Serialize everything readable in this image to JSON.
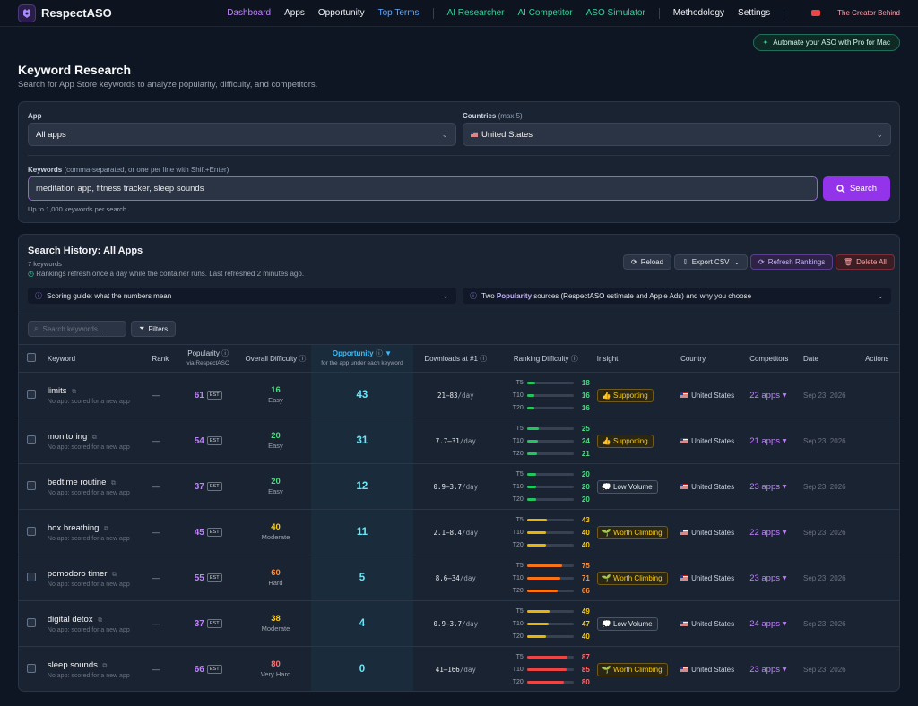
{
  "nav": {
    "brand": "RespectASO",
    "links": [
      "Dashboard",
      "Apps",
      "Opportunity",
      "Top Terms",
      "AI Researcher",
      "AI Competitor",
      "ASO Simulator",
      "Methodology",
      "Settings"
    ],
    "creator": "The Creator Behind",
    "promo": "Automate your ASO with Pro for Mac"
  },
  "header": {
    "title": "Keyword Research",
    "subtitle": "Search for App Store keywords to analyze popularity, difficulty, and competitors."
  },
  "form": {
    "app_label": "App",
    "app_value": "All apps",
    "countries_label": "Countries",
    "countries_hint": "(max 5)",
    "country_value": "United States",
    "keywords_label": "Keywords",
    "keywords_hint": "(comma-separated, or one per line with Shift+Enter)",
    "keywords_value": "meditation app, fitness tracker, sleep sounds",
    "keywords_help": "Up to 1,000 keywords per search",
    "search_label": "Search"
  },
  "history": {
    "title": "Search History: All Apps",
    "count": "7 keywords",
    "refresh_note": "Rankings refresh once a day while the container runs. Last refreshed 2 minutes ago.",
    "reload": "Reload",
    "export": "Export CSV",
    "refresh_rankings": "Refresh Rankings",
    "delete_all": "Delete All",
    "guide": "Scoring guide: what the numbers mean",
    "pop_guide_a": "Two",
    "pop_guide_b": "Popularity",
    "pop_guide_c": "sources (RespectASO estimate and Apple Ads) and why you choose",
    "search_placeholder": "Search keywords...",
    "filters": "Filters"
  },
  "columns": {
    "keyword": "Keyword",
    "rank": "Rank",
    "popularity": "Popularity",
    "popularity_sub": "via RespectASO",
    "difficulty": "Overall Difficulty",
    "opportunity": "Opportunity",
    "opportunity_sub": "for the app under each keyword",
    "downloads": "Downloads at #1",
    "ranking_difficulty": "Ranking Difficulty",
    "insight": "Insight",
    "country": "Country",
    "competitors": "Competitors",
    "date": "Date",
    "actions": "Actions"
  },
  "colors": {
    "accent": "#a855f7",
    "green": "#22c55e",
    "yellow": "#eab308",
    "orange": "#f97316",
    "red": "#ef4444",
    "teal": "#2dd4bf"
  },
  "rows": [
    {
      "keyword": "limits",
      "sub": "No app: scored for a new app",
      "rank": "—",
      "pop": "61",
      "est": "EST",
      "diff": "16",
      "diff_label": "Easy",
      "diff_color": "#4ade80",
      "opp": "43",
      "dl": "21–83",
      "per": "/day",
      "t5": "18",
      "t10": "16",
      "t20": "16",
      "p5": 0.18,
      "p10": 0.16,
      "p20": 0.16,
      "bar_color": "#22c55e",
      "val_color": "#4ade80",
      "insight": "Supporting",
      "insight_icon": "thumbs-up-icon",
      "insight_color": "#facc15",
      "country": "United States",
      "comp": "22 apps ▾",
      "date": "Sep 23, 2026"
    },
    {
      "keyword": "monitoring",
      "sub": "No app: scored for a new app",
      "rank": "—",
      "pop": "54",
      "est": "EST",
      "diff": "20",
      "diff_label": "Easy",
      "diff_color": "#4ade80",
      "opp": "31",
      "dl": "7.7–31",
      "per": "/day",
      "t5": "25",
      "t10": "24",
      "t20": "21",
      "p5": 0.25,
      "p10": 0.24,
      "p20": 0.21,
      "bar_color": "#22c55e",
      "val_color": "#4ade80",
      "insight": "Supporting",
      "insight_icon": "thumbs-up-icon",
      "insight_color": "#facc15",
      "country": "United States",
      "comp": "21 apps ▾",
      "date": "Sep 23, 2026"
    },
    {
      "keyword": "bedtime routine",
      "sub": "No app: scored for a new app",
      "rank": "—",
      "pop": "37",
      "est": "EST",
      "diff": "20",
      "diff_label": "Easy",
      "diff_color": "#4ade80",
      "opp": "12",
      "dl": "0.9–3.7",
      "per": "/day",
      "t5": "20",
      "t10": "20",
      "t20": "20",
      "p5": 0.2,
      "p10": 0.2,
      "p20": 0.2,
      "bar_color": "#22c55e",
      "val_color": "#4ade80",
      "insight": "Low Volume",
      "insight_icon": "bubble-icon",
      "insight_color": "#e5e7eb",
      "country": "United States",
      "comp": "23 apps ▾",
      "date": "Sep 23, 2026"
    },
    {
      "keyword": "box breathing",
      "sub": "No app: scored for a new app",
      "rank": "—",
      "pop": "45",
      "est": "EST",
      "diff": "40",
      "diff_label": "Moderate",
      "diff_color": "#facc15",
      "opp": "11",
      "dl": "2.1–8.4",
      "per": "/day",
      "t5": "43",
      "t10": "40",
      "t20": "40",
      "p5": 0.43,
      "p10": 0.4,
      "p20": 0.4,
      "bar_color": "#eab308",
      "val_color": "#facc15",
      "insight": "Worth Climbing",
      "insight_icon": "sprout-icon",
      "insight_color": "#facc15",
      "country": "United States",
      "comp": "22 apps ▾",
      "date": "Sep 23, 2026"
    },
    {
      "keyword": "pomodoro timer",
      "sub": "No app: scored for a new app",
      "rank": "—",
      "pop": "55",
      "est": "EST",
      "diff": "60",
      "diff_label": "Hard",
      "diff_color": "#fb923c",
      "opp": "5",
      "dl": "8.6–34",
      "per": "/day",
      "t5": "75",
      "t10": "71",
      "t20": "66",
      "p5": 0.75,
      "p10": 0.71,
      "p20": 0.66,
      "bar_color": "#f97316",
      "val_color": "#fb923c",
      "insight": "Worth Climbing",
      "insight_icon": "sprout-icon",
      "insight_color": "#facc15",
      "country": "United States",
      "comp": "23 apps ▾",
      "date": "Sep 23, 2026"
    },
    {
      "keyword": "digital detox",
      "sub": "No app: scored for a new app",
      "rank": "—",
      "pop": "37",
      "est": "EST",
      "diff": "38",
      "diff_label": "Moderate",
      "diff_color": "#facc15",
      "opp": "4",
      "dl": "0.9–3.7",
      "per": "/day",
      "t5": "49",
      "t10": "47",
      "t20": "40",
      "p5": 0.49,
      "p10": 0.47,
      "p20": 0.4,
      "bar_color": "#eab308",
      "val_color": "#facc15",
      "insight": "Low Volume",
      "insight_icon": "bubble-icon",
      "insight_color": "#e5e7eb",
      "country": "United States",
      "comp": "24 apps ▾",
      "date": "Sep 23, 2026"
    },
    {
      "keyword": "sleep sounds",
      "sub": "No app: scored for a new app",
      "rank": "—",
      "pop": "66",
      "est": "EST",
      "diff": "80",
      "diff_label": "Very Hard",
      "diff_color": "#f87171",
      "opp": "0",
      "dl": "41–166",
      "per": "/day",
      "t5": "87",
      "t10": "85",
      "t20": "80",
      "p5": 0.87,
      "p10": 0.85,
      "p20": 0.8,
      "bar_color": "#ef4444",
      "val_color": "#f87171",
      "insight": "Worth Climbing",
      "insight_icon": "sprout-icon",
      "insight_color": "#facc15",
      "country": "United States",
      "comp": "23 apps ▾",
      "date": "Sep 23, 2026"
    }
  ]
}
